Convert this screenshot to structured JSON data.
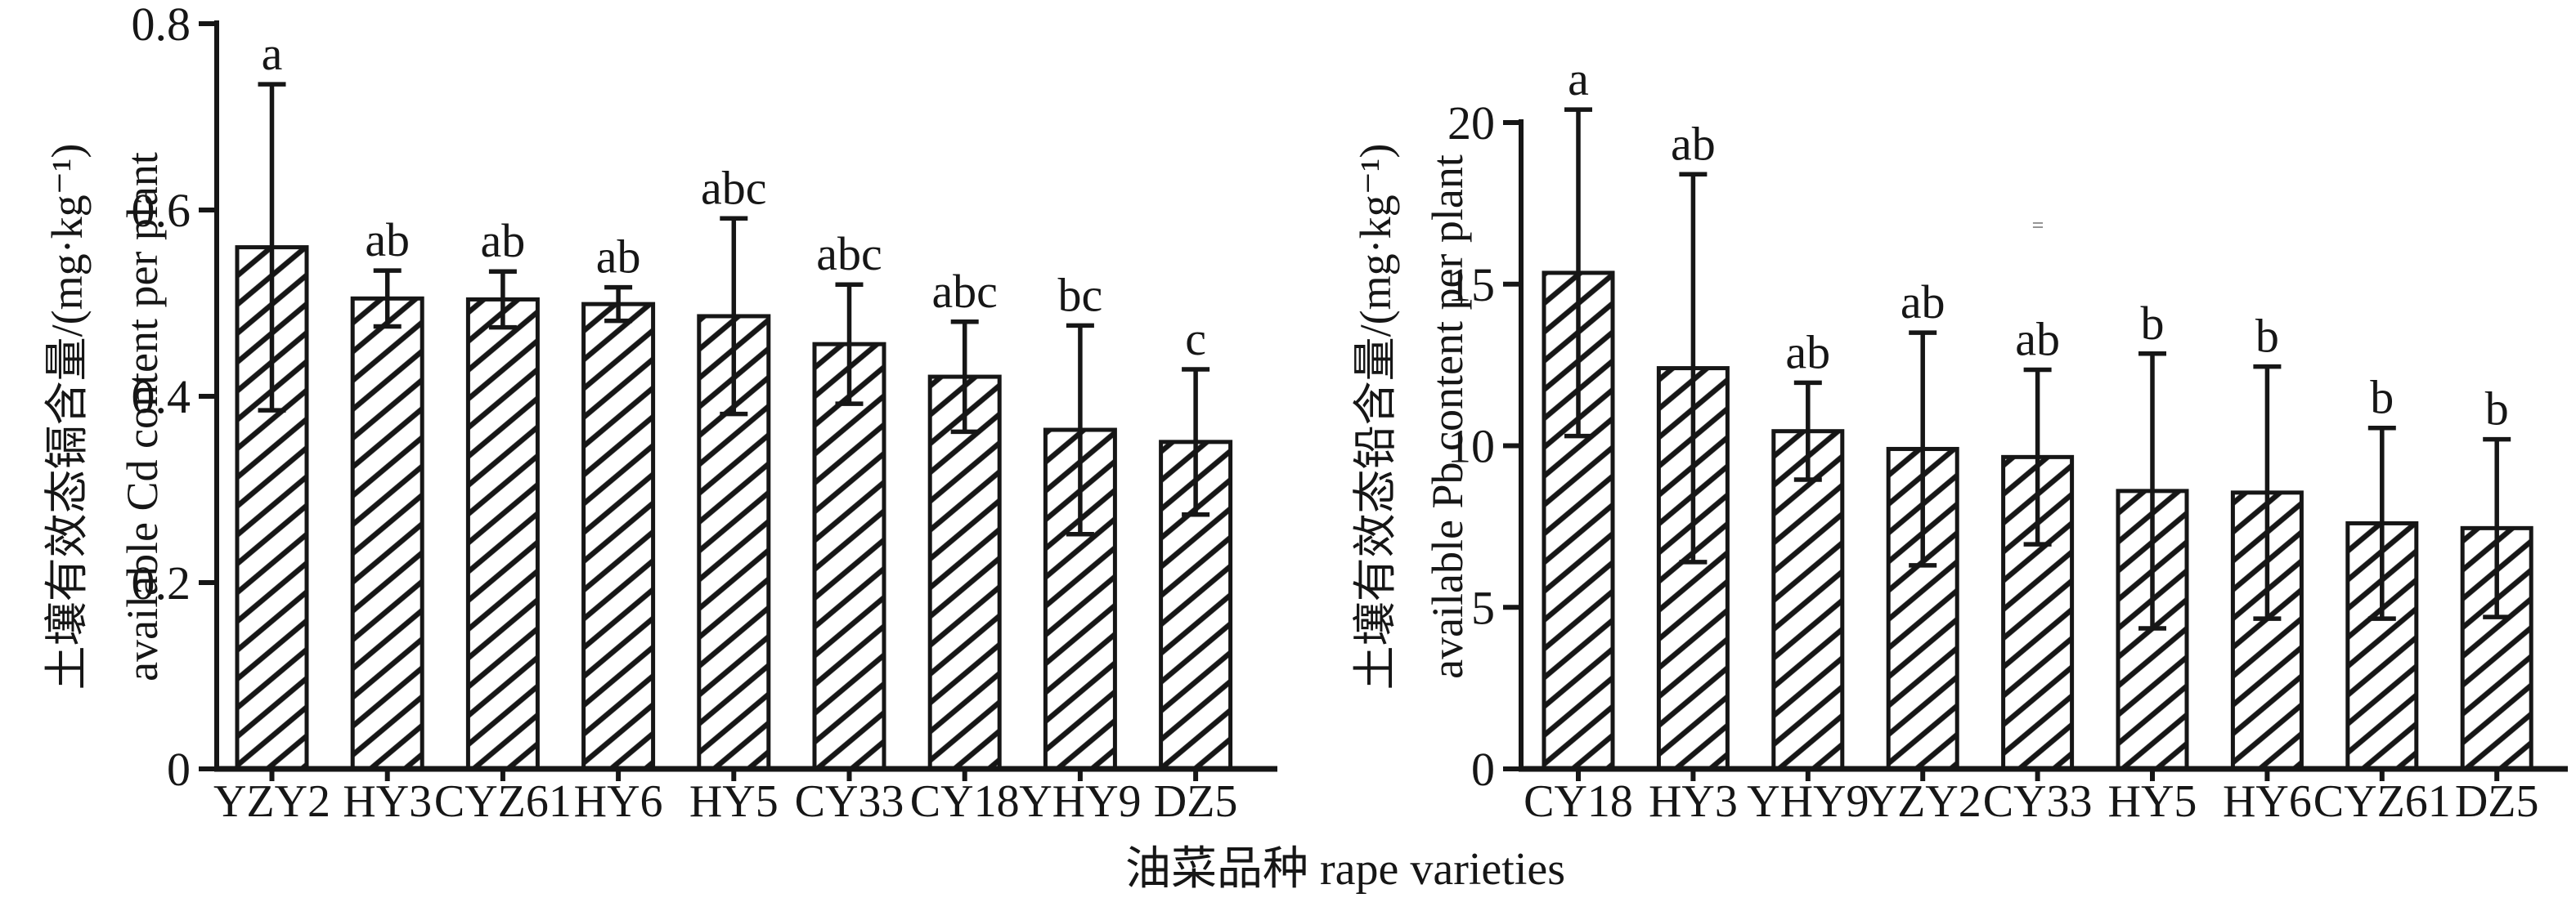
{
  "figure": {
    "x_axis_title": "油菜品种 rape varieties",
    "artifact_glyph": "=",
    "background_color": "#ffffff",
    "ink_color": "#161616",
    "artifact_color": "#8f8f8f"
  },
  "chart_data": [
    {
      "id": "cd",
      "type": "bar",
      "ylabel_line1": "土壤有效态镉含量/(mg·kg⁻¹)",
      "ylabel_line2": "available Cd content per plant",
      "categories": [
        "YZY2",
        "HY3",
        "CYZ61",
        "HY6",
        "HY5",
        "CY33",
        "CY18",
        "YHY9",
        "DZ5"
      ],
      "values": [
        0.56,
        0.505,
        0.504,
        0.499,
        0.486,
        0.456,
        0.421,
        0.364,
        0.351
      ],
      "errors": [
        0.175,
        0.03,
        0.03,
        0.018,
        0.105,
        0.064,
        0.059,
        0.112,
        0.078
      ],
      "sig_letters": [
        "a",
        "ab",
        "ab",
        "ab",
        "abc",
        "abc",
        "abc",
        "bc",
        "c"
      ],
      "ylim": [
        0,
        0.8
      ],
      "yticks": [
        0,
        0.2,
        0.4,
        0.6,
        0.8
      ],
      "ytick_labels": [
        "0",
        "0.2",
        "0.4",
        "0.6",
        "0.8"
      ],
      "bar_style": "diagonal-hatch",
      "error_bars": "symmetric",
      "grid": false,
      "legend": false
    },
    {
      "id": "pb",
      "type": "bar",
      "ylabel_line1": "土壤有效态铅含量/(mg·kg⁻¹)",
      "ylabel_line2": "available Pb content per plant",
      "categories": [
        "CY18",
        "HY3",
        "YHY9",
        "YZY2",
        "CY33",
        "HY5",
        "HY6",
        "CYZ61",
        "DZ5"
      ],
      "values": [
        15.35,
        12.4,
        10.45,
        9.9,
        9.65,
        8.6,
        8.55,
        7.6,
        7.45
      ],
      "errors": [
        5.05,
        6.0,
        1.5,
        3.6,
        2.7,
        4.25,
        3.9,
        2.95,
        2.75
      ],
      "sig_letters": [
        "a",
        "ab",
        "ab",
        "ab",
        "ab",
        "b",
        "b",
        "b",
        "b"
      ],
      "ylim": [
        0,
        20
      ],
      "yticks": [
        0,
        5,
        10,
        15,
        20
      ],
      "ytick_labels": [
        "0",
        "5",
        "10",
        "15",
        "20"
      ],
      "bar_style": "diagonal-hatch",
      "error_bars": "symmetric",
      "grid": false,
      "legend": false
    }
  ]
}
